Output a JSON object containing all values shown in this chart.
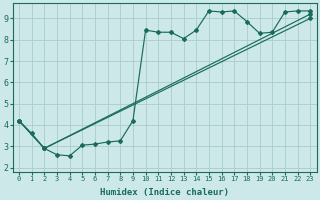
{
  "xlabel": "Humidex (Indice chaleur)",
  "bg_color": "#cce8e8",
  "line_color": "#1a6b5a",
  "grid_color": "#aacccc",
  "xlim": [
    -0.5,
    23.5
  ],
  "ylim": [
    1.8,
    9.7
  ],
  "xticks": [
    0,
    1,
    2,
    3,
    4,
    5,
    6,
    7,
    8,
    9,
    10,
    11,
    12,
    13,
    14,
    15,
    16,
    17,
    18,
    19,
    20,
    21,
    22,
    23
  ],
  "yticks": [
    2,
    3,
    4,
    5,
    6,
    7,
    8,
    9
  ],
  "line1_x": [
    0,
    1,
    2,
    3,
    4,
    5,
    6,
    7,
    8,
    9,
    10,
    11,
    12,
    13,
    14,
    15,
    16,
    17,
    18,
    19,
    20,
    21,
    22,
    23
  ],
  "line1_y": [
    4.2,
    3.6,
    2.9,
    2.6,
    2.55,
    3.05,
    3.1,
    3.2,
    3.25,
    4.2,
    8.45,
    8.35,
    8.35,
    8.05,
    8.45,
    9.35,
    9.3,
    9.35,
    8.85,
    8.3,
    8.35,
    9.3,
    9.35,
    9.35
  ],
  "line2_x": [
    0,
    2,
    23
  ],
  "line2_y": [
    4.2,
    2.9,
    9.2
  ],
  "line3_x": [
    0,
    2,
    23
  ],
  "line3_y": [
    4.2,
    2.9,
    9.0
  ]
}
